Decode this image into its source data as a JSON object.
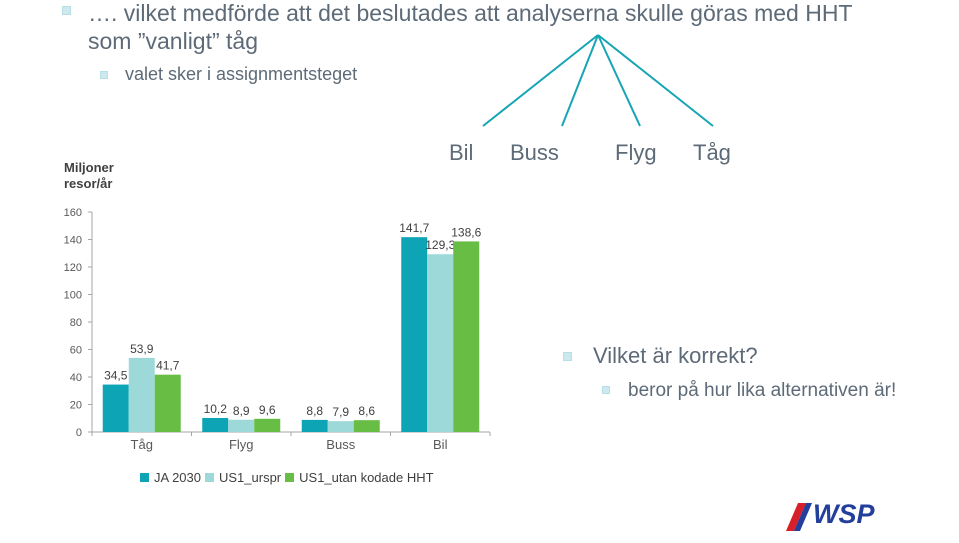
{
  "slide": {
    "bullet1": "…. vilket medförde att det beslutades att analyserna skulle göras med HHT som ”vanligt” tåg",
    "bullet1_line1": "…. vilket medförde att det beslutades att analyserna skulle göras med HHT",
    "bullet1_line2": "som ”vanligt” tåg",
    "bullet2": "valet sker i assignmentsteget",
    "options": [
      "Bil",
      "Buss",
      "Flyg",
      "Tåg"
    ],
    "question": "Vilket är korrekt?",
    "answer": "beror på hur lika alternativen är!",
    "logo_text": "WSP"
  },
  "colors": {
    "accent_bullet": "#cde9ee",
    "text": "#5d6a77",
    "series": [
      "#0da5b5",
      "#9ed9d9",
      "#68bd45"
    ],
    "logo_blue": "#243e9b",
    "logo_red": "#d6202a"
  },
  "chart_data": {
    "type": "bar",
    "title": "",
    "xlabel": "",
    "ylabel": "Miljoner resor/år",
    "ylim": [
      0,
      160
    ],
    "yticks": [
      0,
      20,
      40,
      60,
      80,
      100,
      120,
      140,
      160
    ],
    "categories": [
      "Tåg",
      "Flyg",
      "Buss",
      "Bil"
    ],
    "series": [
      {
        "name": "JA 2030",
        "values": [
          34.5,
          10.2,
          8.8,
          141.7
        ],
        "labels": [
          "34,5",
          "10,2",
          "8,8",
          "141,7"
        ]
      },
      {
        "name": "US1_urspr",
        "values": [
          53.9,
          8.9,
          7.9,
          129.3
        ],
        "labels": [
          "53,9",
          "8,9",
          "7,9",
          "129,3"
        ]
      },
      {
        "name": "US1_utan kodade HHT",
        "values": [
          41.7,
          9.6,
          8.6,
          138.6
        ],
        "labels": [
          "41,7",
          "9,6",
          "8,6",
          "138,6"
        ]
      }
    ],
    "legend_position": "bottom",
    "grid": false
  }
}
